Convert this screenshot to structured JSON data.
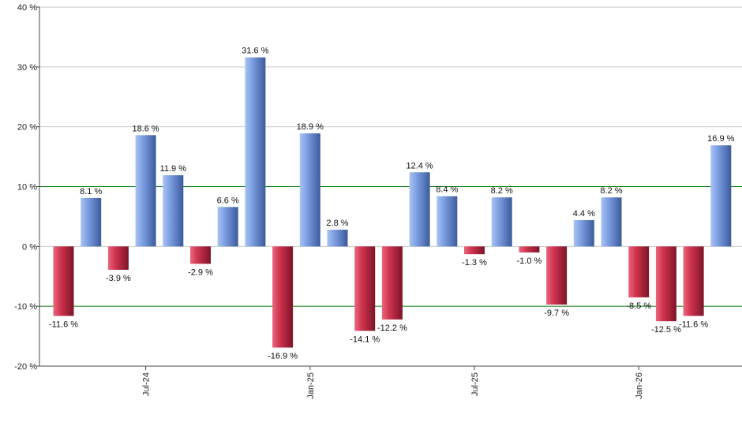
{
  "chart_data": {
    "type": "bar",
    "title": "",
    "xlabel": "",
    "ylabel": "",
    "ylim": [
      -20,
      40
    ],
    "yticks": [
      -20,
      -10,
      0,
      10,
      20,
      30,
      40
    ],
    "ytick_labels": [
      "-20 %",
      "-10 %",
      "0 %",
      "10 %",
      "20 %",
      "30 %",
      "40 %"
    ],
    "reference_lines": [
      10,
      -10
    ],
    "reference_line_color": "#007700",
    "grid": true,
    "legend": "none",
    "positive_color": "#6c8fd6",
    "negative_color": "#c8304e",
    "values": [
      -11.6,
      8.1,
      -3.9,
      18.6,
      11.9,
      -2.9,
      6.6,
      31.6,
      -16.9,
      18.9,
      2.8,
      -14.1,
      -12.2,
      12.4,
      8.4,
      -1.3,
      8.2,
      -1.0,
      -9.7,
      4.4,
      8.2,
      -8.5,
      -12.5,
      -11.6,
      16.9
    ],
    "value_labels": [
      "-11.6 %",
      "8.1 %",
      "-3.9 %",
      "18.6 %",
      "11.9 %",
      "-2.9 %",
      "6.6 %",
      "31.6 %",
      "-16.9 %",
      "18.9 %",
      "2.8 %",
      "-14.1 %",
      "-12.2 %",
      "12.4 %",
      "8.4 %",
      "-1.3 %",
      "8.2 %",
      "-1.0 %",
      "-9.7 %",
      "4.4 %",
      "8.2 %",
      "-8.5 %",
      "-12.5 %",
      "-11.6 %",
      "16.9 %"
    ],
    "x_ticks": [
      {
        "bar": 3,
        "label": "Jul-24"
      },
      {
        "bar": 9,
        "label": "Jan-25"
      },
      {
        "bar": 15,
        "label": "Jul-25"
      },
      {
        "bar": 21,
        "label": "Jan-26"
      }
    ]
  }
}
